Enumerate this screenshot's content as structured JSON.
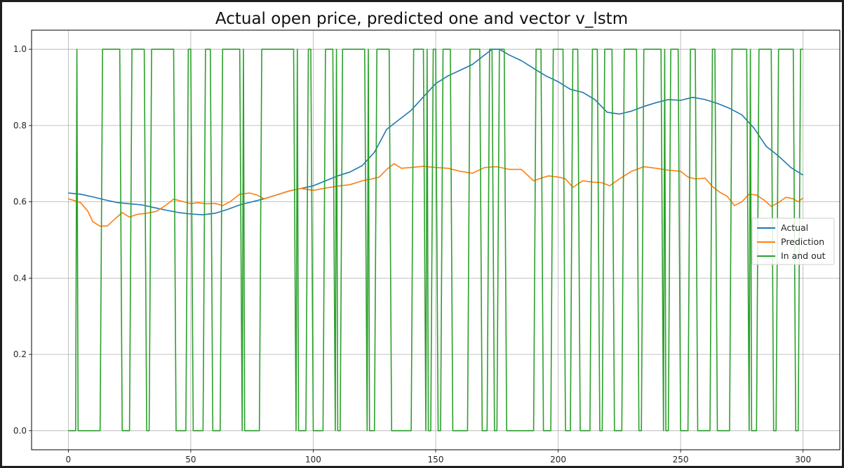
{
  "chart_data": {
    "type": "line",
    "title": "Actual open price, predicted one and vector v_lstm",
    "xlabel": "",
    "ylabel": "",
    "xlim": [
      -15,
      315
    ],
    "ylim": [
      -0.05,
      1.05
    ],
    "xticks": [
      0,
      50,
      100,
      150,
      200,
      250,
      300
    ],
    "yticks": [
      0.0,
      0.2,
      0.4,
      0.6,
      0.8,
      1.0
    ],
    "xtick_labels": [
      "0",
      "50",
      "100",
      "150",
      "200",
      "250",
      "300"
    ],
    "ytick_labels": [
      "0.0",
      "0.2",
      "0.4",
      "0.6",
      "0.8",
      "1.0"
    ],
    "grid": true,
    "legend_position": "center-right",
    "series": [
      {
        "name": "Actual",
        "color": "#1f77b4",
        "points": [
          [
            0,
            0.623
          ],
          [
            5,
            0.62
          ],
          [
            10,
            0.613
          ],
          [
            15,
            0.605
          ],
          [
            20,
            0.598
          ],
          [
            25,
            0.595
          ],
          [
            30,
            0.592
          ],
          [
            35,
            0.585
          ],
          [
            40,
            0.578
          ],
          [
            45,
            0.572
          ],
          [
            50,
            0.568
          ],
          [
            55,
            0.566
          ],
          [
            60,
            0.57
          ],
          [
            65,
            0.58
          ],
          [
            70,
            0.592
          ],
          [
            75,
            0.6
          ],
          [
            80,
            0.608
          ],
          [
            85,
            0.618
          ],
          [
            90,
            0.628
          ],
          [
            95,
            0.635
          ],
          [
            100,
            0.642
          ],
          [
            105,
            0.655
          ],
          [
            110,
            0.668
          ],
          [
            115,
            0.678
          ],
          [
            120,
            0.695
          ],
          [
            125,
            0.73
          ],
          [
            130,
            0.79
          ],
          [
            135,
            0.815
          ],
          [
            140,
            0.84
          ],
          [
            145,
            0.875
          ],
          [
            150,
            0.91
          ],
          [
            155,
            0.93
          ],
          [
            160,
            0.945
          ],
          [
            165,
            0.96
          ],
          [
            170,
            0.985
          ],
          [
            173,
            1.0
          ],
          [
            176,
            1.0
          ],
          [
            180,
            0.985
          ],
          [
            185,
            0.97
          ],
          [
            190,
            0.95
          ],
          [
            195,
            0.93
          ],
          [
            200,
            0.915
          ],
          [
            205,
            0.895
          ],
          [
            210,
            0.887
          ],
          [
            215,
            0.868
          ],
          [
            220,
            0.835
          ],
          [
            225,
            0.83
          ],
          [
            230,
            0.838
          ],
          [
            235,
            0.85
          ],
          [
            240,
            0.86
          ],
          [
            245,
            0.868
          ],
          [
            250,
            0.866
          ],
          [
            255,
            0.874
          ],
          [
            260,
            0.868
          ],
          [
            265,
            0.858
          ],
          [
            270,
            0.845
          ],
          [
            275,
            0.828
          ],
          [
            280,
            0.793
          ],
          [
            285,
            0.745
          ],
          [
            290,
            0.72
          ],
          [
            295,
            0.69
          ],
          [
            300,
            0.67
          ]
        ]
      },
      {
        "name": "Prediction",
        "color": "#ff7f0e",
        "points": [
          [
            0,
            0.608
          ],
          [
            5,
            0.598
          ],
          [
            8,
            0.575
          ],
          [
            10,
            0.548
          ],
          [
            13,
            0.536
          ],
          [
            16,
            0.537
          ],
          [
            19,
            0.555
          ],
          [
            22,
            0.572
          ],
          [
            25,
            0.56
          ],
          [
            28,
            0.567
          ],
          [
            32,
            0.57
          ],
          [
            36,
            0.575
          ],
          [
            40,
            0.592
          ],
          [
            43,
            0.607
          ],
          [
            46,
            0.602
          ],
          [
            50,
            0.595
          ],
          [
            53,
            0.598
          ],
          [
            56,
            0.595
          ],
          [
            60,
            0.596
          ],
          [
            63,
            0.59
          ],
          [
            66,
            0.6
          ],
          [
            70,
            0.62
          ],
          [
            74,
            0.623
          ],
          [
            77,
            0.618
          ],
          [
            80,
            0.608
          ],
          [
            85,
            0.618
          ],
          [
            90,
            0.628
          ],
          [
            95,
            0.635
          ],
          [
            100,
            0.63
          ],
          [
            105,
            0.636
          ],
          [
            110,
            0.641
          ],
          [
            115,
            0.645
          ],
          [
            120,
            0.655
          ],
          [
            124,
            0.66
          ],
          [
            127,
            0.665
          ],
          [
            130,
            0.685
          ],
          [
            133,
            0.7
          ],
          [
            136,
            0.688
          ],
          [
            140,
            0.69
          ],
          [
            145,
            0.693
          ],
          [
            150,
            0.69
          ],
          [
            155,
            0.688
          ],
          [
            160,
            0.68
          ],
          [
            165,
            0.675
          ],
          [
            170,
            0.69
          ],
          [
            175,
            0.692
          ],
          [
            180,
            0.685
          ],
          [
            185,
            0.685
          ],
          [
            190,
            0.655
          ],
          [
            193,
            0.662
          ],
          [
            196,
            0.668
          ],
          [
            200,
            0.665
          ],
          [
            203,
            0.66
          ],
          [
            206,
            0.638
          ],
          [
            210,
            0.655
          ],
          [
            214,
            0.652
          ],
          [
            218,
            0.65
          ],
          [
            221,
            0.642
          ],
          [
            225,
            0.66
          ],
          [
            230,
            0.68
          ],
          [
            235,
            0.692
          ],
          [
            240,
            0.688
          ],
          [
            245,
            0.683
          ],
          [
            250,
            0.68
          ],
          [
            253,
            0.665
          ],
          [
            256,
            0.66
          ],
          [
            260,
            0.662
          ],
          [
            263,
            0.64
          ],
          [
            266,
            0.625
          ],
          [
            269,
            0.615
          ],
          [
            272,
            0.59
          ],
          [
            275,
            0.6
          ],
          [
            278,
            0.62
          ],
          [
            281,
            0.618
          ],
          [
            284,
            0.605
          ],
          [
            287,
            0.588
          ],
          [
            290,
            0.598
          ],
          [
            293,
            0.612
          ],
          [
            296,
            0.608
          ],
          [
            298,
            0.6
          ],
          [
            300,
            0.61
          ]
        ]
      },
      {
        "name": "In and out",
        "color": "#2ca02c",
        "points": [
          [
            0,
            0
          ],
          [
            3,
            0
          ],
          [
            3.5,
            1
          ],
          [
            4,
            0
          ],
          [
            13,
            0
          ],
          [
            14,
            1
          ],
          [
            21,
            1
          ],
          [
            22,
            0
          ],
          [
            25,
            0
          ],
          [
            26,
            1
          ],
          [
            31,
            1
          ],
          [
            32,
            0
          ],
          [
            33,
            0
          ],
          [
            34,
            1
          ],
          [
            43,
            1
          ],
          [
            44,
            0
          ],
          [
            48,
            0
          ],
          [
            49,
            1
          ],
          [
            50,
            1
          ],
          [
            51,
            0
          ],
          [
            55,
            0
          ],
          [
            56,
            1
          ],
          [
            58,
            1
          ],
          [
            59,
            0
          ],
          [
            62,
            0
          ],
          [
            63,
            1
          ],
          [
            70,
            1
          ],
          [
            71,
            0
          ],
          [
            71.5,
            1
          ],
          [
            72,
            0
          ],
          [
            78,
            0
          ],
          [
            79,
            1
          ],
          [
            92,
            1
          ],
          [
            93,
            0
          ],
          [
            93.5,
            1
          ],
          [
            94,
            0
          ],
          [
            97,
            0
          ],
          [
            98,
            1
          ],
          [
            99,
            1
          ],
          [
            100,
            0
          ],
          [
            104,
            0
          ],
          [
            105,
            1
          ],
          [
            108,
            1
          ],
          [
            109,
            0
          ],
          [
            109.5,
            1
          ],
          [
            110,
            0
          ],
          [
            111,
            0
          ],
          [
            112,
            1
          ],
          [
            121,
            1
          ],
          [
            122,
            0
          ],
          [
            122.5,
            1
          ],
          [
            123,
            0
          ],
          [
            125,
            0
          ],
          [
            126,
            1
          ],
          [
            131,
            1
          ],
          [
            132,
            0
          ],
          [
            140,
            0
          ],
          [
            141,
            1
          ],
          [
            145,
            1
          ],
          [
            146,
            0
          ],
          [
            146.5,
            1
          ],
          [
            147,
            0
          ],
          [
            148,
            0
          ],
          [
            149,
            1
          ],
          [
            150,
            1
          ],
          [
            151,
            0
          ],
          [
            152,
            0
          ],
          [
            153,
            1
          ],
          [
            156,
            1
          ],
          [
            157,
            0
          ],
          [
            163,
            0
          ],
          [
            164,
            1
          ],
          [
            168,
            1
          ],
          [
            169,
            0
          ],
          [
            171,
            0
          ],
          [
            172,
            1
          ],
          [
            173,
            1
          ],
          [
            174,
            0
          ],
          [
            175,
            0
          ],
          [
            176,
            1
          ],
          [
            178,
            1
          ],
          [
            179,
            0
          ],
          [
            190,
            0
          ],
          [
            191,
            1
          ],
          [
            193,
            1
          ],
          [
            194,
            0
          ],
          [
            197,
            0
          ],
          [
            198,
            1
          ],
          [
            202,
            1
          ],
          [
            203,
            0
          ],
          [
            205,
            0
          ],
          [
            206,
            1
          ],
          [
            208,
            1
          ],
          [
            209,
            0
          ],
          [
            213,
            0
          ],
          [
            214,
            1
          ],
          [
            216,
            1
          ],
          [
            217,
            0
          ],
          [
            218,
            0
          ],
          [
            219,
            1
          ],
          [
            222,
            1
          ],
          [
            223,
            0
          ],
          [
            226,
            0
          ],
          [
            227,
            1
          ],
          [
            232,
            1
          ],
          [
            233,
            0
          ],
          [
            234,
            0
          ],
          [
            235,
            1
          ],
          [
            242,
            1
          ],
          [
            243,
            0
          ],
          [
            243.5,
            1
          ],
          [
            244,
            0
          ],
          [
            245,
            0
          ],
          [
            246,
            1
          ],
          [
            249,
            1
          ],
          [
            250,
            0
          ],
          [
            253,
            0
          ],
          [
            254,
            1
          ],
          [
            256,
            1
          ],
          [
            257,
            0
          ],
          [
            262,
            0
          ],
          [
            263,
            1
          ],
          [
            264,
            1
          ],
          [
            265,
            0
          ],
          [
            270,
            0
          ],
          [
            271,
            1
          ],
          [
            277,
            1
          ],
          [
            278,
            0
          ],
          [
            278.5,
            1
          ],
          [
            279,
            0
          ],
          [
            281,
            0
          ],
          [
            282,
            1
          ],
          [
            287,
            1
          ],
          [
            288,
            0
          ],
          [
            289,
            0
          ],
          [
            290,
            1
          ],
          [
            296,
            1
          ],
          [
            297,
            0
          ],
          [
            298,
            0
          ],
          [
            299,
            1
          ],
          [
            300,
            1
          ]
        ]
      }
    ]
  }
}
